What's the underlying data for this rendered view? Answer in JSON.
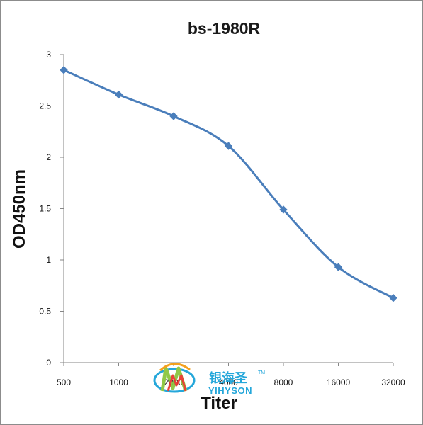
{
  "chart_data": {
    "type": "line",
    "title": "bs-1980R",
    "xlabel": "Titer",
    "ylabel": "OD450nm",
    "categories": [
      "500",
      "1000",
      "2000",
      "4000",
      "8000",
      "16000",
      "32000"
    ],
    "series": [
      {
        "values": [
          2.85,
          2.61,
          2.4,
          2.11,
          1.49,
          0.93,
          0.63
        ]
      }
    ],
    "ylim": [
      0,
      3
    ],
    "yticks": [
      "0",
      "0.5",
      "1",
      "1.5",
      "2",
      "2.5",
      "3"
    ],
    "grid": false,
    "legend": "none",
    "line_color": "#4a7ebb",
    "marker": "diamond"
  },
  "watermark": {
    "cn_text": "银海圣",
    "en_text": "YIHYSON",
    "tm": "TM",
    "colors": [
      "#1aa3d9",
      "#8cc63f",
      "#e8382f",
      "#f39c12"
    ]
  }
}
